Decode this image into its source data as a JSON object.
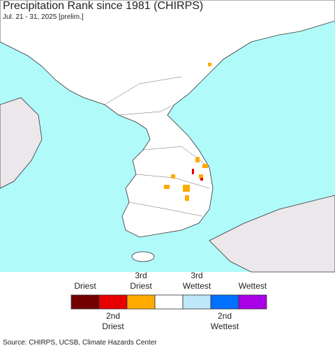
{
  "header": {
    "title": "Precipitation Rank since 1981 (CHIRPS)",
    "subtitle": "Jul. 21 - 31, 2025 [prelim.]"
  },
  "legend": {
    "items": [
      {
        "color": "#730000",
        "label": [
          "Driest"
        ]
      },
      {
        "color": "#e60000",
        "label": [
          "2nd",
          "Driest"
        ]
      },
      {
        "color": "#ffaa00",
        "label": [
          "3rd",
          "Driest"
        ]
      },
      {
        "color": "#ffffff"
      },
      {
        "color": "#bee8fa",
        "label": [
          "3rd",
          "Wettest"
        ]
      },
      {
        "color": "#0070ff",
        "label": [
          "2nd",
          "Wettest"
        ]
      },
      {
        "color": "#aa00e6",
        "label": [
          "Wettest"
        ]
      }
    ]
  },
  "source": "Source: CHIRPS, UCSB, Climate Hazards Center"
}
